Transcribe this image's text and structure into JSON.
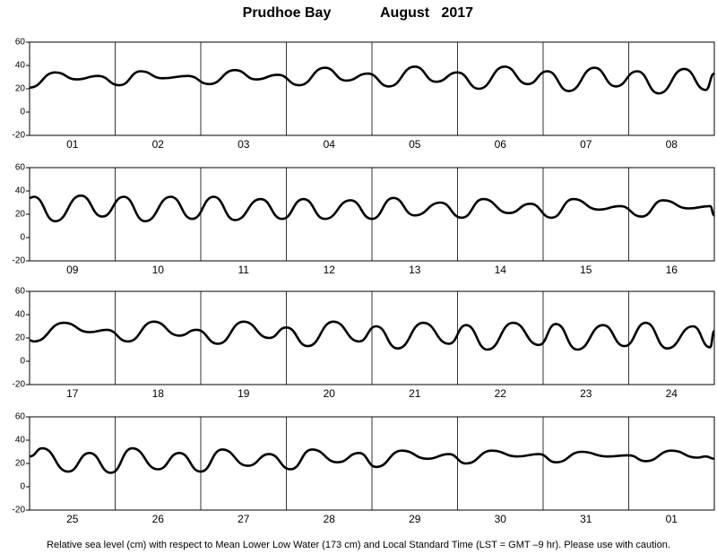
{
  "title": "Prudhoe Bay",
  "date": "August   2017",
  "footnote": "Relative sea level (cm) with respect to Mean Lower Low Water (173 cm) and Local Standard Time (LST = GMT –9 hr). Please use with caution.",
  "chart_data": [
    {
      "type": "line",
      "xlim": [
        0,
        8
      ],
      "ylim": [
        -20,
        60
      ],
      "yticks": [
        -20,
        0,
        20,
        40,
        60
      ],
      "xticks": [
        {
          "value": 0.5,
          "label": "01"
        },
        {
          "value": 1.5,
          "label": "02"
        },
        {
          "value": 2.5,
          "label": "03"
        },
        {
          "value": 3.5,
          "label": "04"
        },
        {
          "value": 4.5,
          "label": "05"
        },
        {
          "value": 5.5,
          "label": "06"
        },
        {
          "value": 6.5,
          "label": "07"
        },
        {
          "value": 7.5,
          "label": "08"
        }
      ],
      "color": "#000000",
      "x": [
        0,
        0.3,
        0.55,
        0.8,
        1.05,
        1.3,
        1.55,
        1.85,
        2.1,
        2.4,
        2.65,
        2.9,
        3.15,
        3.45,
        3.7,
        3.95,
        4.2,
        4.5,
        4.75,
        5.0,
        5.25,
        5.55,
        5.82,
        6.05,
        6.3,
        6.6,
        6.85,
        7.1,
        7.35,
        7.65,
        7.9,
        8.0
      ],
      "values": [
        21,
        34,
        28,
        31,
        23,
        35,
        29,
        31,
        24,
        36,
        28,
        32,
        23,
        38,
        27,
        33,
        22,
        39,
        26,
        34,
        20,
        39,
        24,
        35,
        18,
        38,
        22,
        35,
        16,
        37,
        19,
        33
      ]
    },
    {
      "type": "line",
      "xlim": [
        0,
        8
      ],
      "ylim": [
        -20,
        60
      ],
      "yticks": [
        -20,
        0,
        20,
        40,
        60
      ],
      "xticks": [
        {
          "value": 0.5,
          "label": "09"
        },
        {
          "value": 1.5,
          "label": "10"
        },
        {
          "value": 2.5,
          "label": "11"
        },
        {
          "value": 3.5,
          "label": "12"
        },
        {
          "value": 4.5,
          "label": "13"
        },
        {
          "value": 5.5,
          "label": "14"
        },
        {
          "value": 6.5,
          "label": "15"
        },
        {
          "value": 7.5,
          "label": "16"
        }
      ],
      "color": "#000000",
      "x": [
        0,
        0.05,
        0.3,
        0.6,
        0.85,
        1.1,
        1.35,
        1.65,
        1.9,
        2.15,
        2.4,
        2.7,
        2.95,
        3.2,
        3.45,
        3.75,
        4.0,
        4.25,
        4.5,
        4.8,
        5.05,
        5.3,
        5.6,
        5.85,
        6.1,
        6.35,
        6.65,
        6.9,
        7.15,
        7.4,
        7.7,
        7.95,
        8.0
      ],
      "values": [
        34,
        35,
        14,
        36,
        18,
        35,
        14,
        35,
        16,
        35,
        15,
        33,
        16,
        33,
        16,
        32,
        16,
        34,
        19,
        30,
        17,
        33,
        21,
        29,
        17,
        33,
        24,
        27,
        18,
        32,
        25,
        27,
        19
      ]
    },
    {
      "type": "line",
      "xlim": [
        0,
        8
      ],
      "ylim": [
        -20,
        60
      ],
      "yticks": [
        -20,
        0,
        20,
        40,
        60
      ],
      "xticks": [
        {
          "value": 0.5,
          "label": "17"
        },
        {
          "value": 1.5,
          "label": "18"
        },
        {
          "value": 2.5,
          "label": "19"
        },
        {
          "value": 3.5,
          "label": "20"
        },
        {
          "value": 4.5,
          "label": "21"
        },
        {
          "value": 5.5,
          "label": "22"
        },
        {
          "value": 6.5,
          "label": "23"
        },
        {
          "value": 7.5,
          "label": "24"
        }
      ],
      "color": "#000000",
      "x": [
        0,
        0.05,
        0.4,
        0.7,
        0.9,
        1.15,
        1.45,
        1.75,
        1.95,
        2.2,
        2.5,
        2.8,
        3.0,
        3.25,
        3.55,
        3.85,
        4.05,
        4.3,
        4.6,
        4.9,
        5.1,
        5.35,
        5.65,
        5.95,
        6.15,
        6.4,
        6.7,
        6.95,
        7.2,
        7.45,
        7.75,
        7.95,
        8.0
      ],
      "values": [
        18,
        17,
        33,
        25,
        27,
        17,
        34,
        22,
        27,
        15,
        34,
        20,
        29,
        13,
        34,
        17,
        30,
        11,
        33,
        15,
        31,
        10,
        33,
        14,
        32,
        10,
        31,
        13,
        33,
        11,
        30,
        12,
        26
      ]
    },
    {
      "type": "line",
      "xlim": [
        0,
        8
      ],
      "ylim": [
        -20,
        60
      ],
      "yticks": [
        -20,
        0,
        20,
        40,
        60
      ],
      "xticks": [
        {
          "value": 0.5,
          "label": "25"
        },
        {
          "value": 1.5,
          "label": "26"
        },
        {
          "value": 2.5,
          "label": "27"
        },
        {
          "value": 3.5,
          "label": "28"
        },
        {
          "value": 4.5,
          "label": "29"
        },
        {
          "value": 5.5,
          "label": "30"
        },
        {
          "value": 6.5,
          "label": "31"
        },
        {
          "value": 7.5,
          "label": "01"
        }
      ],
      "color": "#000000",
      "x": [
        0,
        0.15,
        0.45,
        0.7,
        0.95,
        1.2,
        1.5,
        1.75,
        2.0,
        2.25,
        2.55,
        2.8,
        3.05,
        3.3,
        3.6,
        3.85,
        4.05,
        4.35,
        4.65,
        4.9,
        5.1,
        5.4,
        5.7,
        5.95,
        6.15,
        6.45,
        6.75,
        7.0,
        7.2,
        7.5,
        7.8,
        7.9,
        8.0
      ],
      "values": [
        26,
        33,
        13,
        29,
        12,
        33,
        15,
        29,
        13,
        32,
        18,
        28,
        15,
        32,
        21,
        29,
        17,
        31,
        24,
        28,
        20,
        31,
        26,
        28,
        21,
        30,
        26,
        27,
        22,
        31,
        25,
        26,
        24
      ]
    }
  ]
}
